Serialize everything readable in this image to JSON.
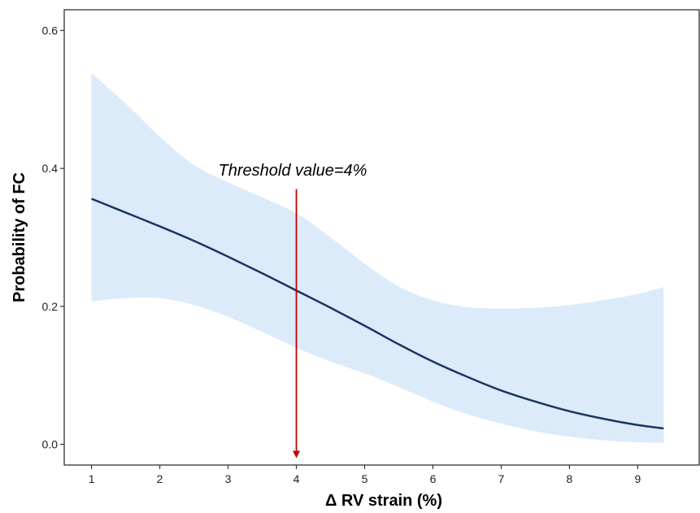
{
  "chart_data": {
    "type": "line",
    "title": "",
    "xlabel": "Δ RV strain (%)",
    "ylabel": "Probability of FC",
    "xlim": [
      0.6,
      9.9
    ],
    "ylim": [
      -0.03,
      0.63
    ],
    "x_ticks": [
      1,
      2,
      3,
      4,
      5,
      6,
      7,
      8,
      9
    ],
    "y_ticks": [
      0.0,
      0.2,
      0.4,
      0.6
    ],
    "y_tick_labels": [
      "0.0",
      "0.2",
      "0.4",
      "0.6"
    ],
    "grid": false,
    "series": [
      {
        "x": [
          1.0,
          1.5,
          2.0,
          2.5,
          3.0,
          3.5,
          4.0,
          4.5,
          5.0,
          5.5,
          6.0,
          6.5,
          7.0,
          7.5,
          8.0,
          8.5,
          9.0,
          9.38
        ],
        "values": [
          0.356,
          0.336,
          0.316,
          0.295,
          0.272,
          0.248,
          0.223,
          0.198,
          0.172,
          0.145,
          0.12,
          0.098,
          0.078,
          0.062,
          0.048,
          0.037,
          0.028,
          0.023
        ],
        "ci_upper": [
          0.538,
          0.494,
          0.446,
          0.405,
          0.38,
          0.358,
          0.335,
          0.3,
          0.262,
          0.229,
          0.209,
          0.199,
          0.197,
          0.198,
          0.202,
          0.209,
          0.218,
          0.228
        ],
        "ci_lower": [
          0.207,
          0.212,
          0.212,
          0.202,
          0.185,
          0.163,
          0.14,
          0.12,
          0.103,
          0.083,
          0.062,
          0.044,
          0.03,
          0.019,
          0.011,
          0.006,
          0.003,
          0.002
        ],
        "color": "#1a3560",
        "band_color": "#dcebfa"
      }
    ],
    "annotations": [
      {
        "text": "Threshold value=4%",
        "x": 4,
        "arrow_from_y": 0.37,
        "arrow_to_y": -0.02,
        "color": "#c00000"
      }
    ]
  }
}
